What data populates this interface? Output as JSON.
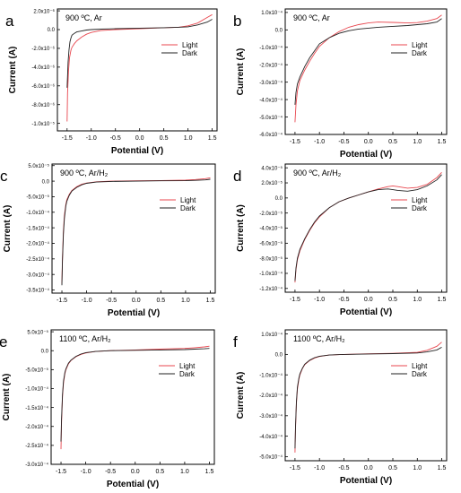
{
  "colors": {
    "light": "#e8474f",
    "dark": "#222222",
    "axis": "#000000"
  },
  "chart_data": [
    {
      "panel": "a",
      "type": "line",
      "annotation": "900 ºC, Ar",
      "xlabel": "Potential (V)",
      "ylabel": "Current (A)",
      "xlim": [
        -1.7,
        1.6
      ],
      "ylim": [
        -1.08e-05,
        2.2e-06
      ],
      "xticks": [
        -1.5,
        -1.0,
        -0.5,
        0.0,
        0.5,
        1.0,
        1.5
      ],
      "xtick_labels": [
        "-1.5",
        "-1.0",
        "-0.5",
        "0.0",
        "0.5",
        "1.0",
        "1.5"
      ],
      "yticks": [
        2e-06,
        0,
        -2e-06,
        -4e-06,
        -6e-06,
        -8e-06,
        -1e-05
      ],
      "ytick_labels": [
        "2.0x10⁻⁶",
        "0.0",
        "-2.0x10⁻⁶",
        "-4.0x10⁻⁶",
        "-6.0x10⁻⁶",
        "-8.0x10⁻⁶",
        "-1.0x10⁻⁵"
      ],
      "legend": "right",
      "series": [
        {
          "name": "Light",
          "color": "light",
          "x": [
            -1.5,
            -1.49,
            -1.47,
            -1.45,
            -1.42,
            -1.4,
            -1.35,
            -1.3,
            -1.2,
            -1.1,
            -1.0,
            -0.8,
            -0.5,
            0.0,
            0.5,
            0.8,
            1.0,
            1.2,
            1.4,
            1.5
          ],
          "y": [
            -9.8e-06,
            -6.8e-06,
            -4.4e-06,
            -3e-06,
            -2.2e-06,
            -1.9e-06,
            -1.5e-06,
            -1.2e-06,
            -8e-07,
            -5e-07,
            -3e-07,
            -1e-07,
            0,
            1e-07,
            2e-07,
            2.5e-07,
            4e-07,
            7e-07,
            1.3e-06,
            1.6e-06
          ]
        },
        {
          "name": "Dark",
          "color": "dark",
          "x": [
            -1.5,
            -1.49,
            -1.48,
            -1.46,
            -1.44,
            -1.42,
            -1.4,
            -1.35,
            -1.3,
            -1.2,
            -1.1,
            -1.0,
            -0.8,
            -0.5,
            0.0,
            0.5,
            0.8,
            1.0,
            1.2,
            1.4,
            1.5
          ],
          "y": [
            -6.2e-06,
            -5e-06,
            -3.5e-06,
            -2.2e-06,
            -1.3e-06,
            -9e-07,
            -6e-07,
            -4e-07,
            -2.5e-07,
            -1.5e-07,
            -5e-08,
            0,
            5e-08,
            1e-07,
            1.5e-07,
            2e-07,
            2.5e-07,
            3e-07,
            5e-07,
            8e-07,
            1.1e-06
          ]
        }
      ]
    },
    {
      "panel": "b",
      "type": "line",
      "annotation": "900 ºC, Ar",
      "xlabel": "Potential (V)",
      "ylabel": "Current (A)",
      "xlim": [
        -1.7,
        1.6
      ],
      "ylim": [
        -0.0006,
        0.00012
      ],
      "xticks": [
        -1.5,
        -1.0,
        -0.5,
        0.0,
        0.5,
        1.0,
        1.5
      ],
      "xtick_labels": [
        "-1.5",
        "-1.0",
        "-0.5",
        "0.0",
        "0.5",
        "1.0",
        "1.5"
      ],
      "yticks": [
        0.0001,
        0,
        -0.0001,
        -0.0002,
        -0.0003,
        -0.0004,
        -0.0005,
        -0.0006
      ],
      "ytick_labels": [
        "1.0x10⁻⁴",
        "0.0",
        "-1.0x10⁻⁴",
        "-2.0x10⁻⁴",
        "-3.0x10⁻⁴",
        "-4.0x10⁻⁴",
        "-5.0x10⁻⁴",
        "-6.0x10⁻⁴"
      ],
      "legend": "right",
      "series": [
        {
          "name": "Light",
          "color": "light",
          "x": [
            -1.5,
            -1.48,
            -1.45,
            -1.4,
            -1.3,
            -1.2,
            -1.1,
            -1.0,
            -0.8,
            -0.6,
            -0.4,
            -0.2,
            0.0,
            0.2,
            0.5,
            0.8,
            1.0,
            1.2,
            1.4,
            1.5
          ],
          "y": [
            -0.00053,
            -0.00043,
            -0.00035,
            -0.00029,
            -0.00023,
            -0.00018,
            -0.000135,
            -9.5e-05,
            -4.5e-05,
            -1e-05,
            1.5e-05,
            3e-05,
            4e-05,
            4.5e-05,
            4.3e-05,
            4e-05,
            4.2e-05,
            5e-05,
            6.5e-05,
            8.5e-05
          ]
        },
        {
          "name": "Dark",
          "color": "dark",
          "x": [
            -1.5,
            -1.48,
            -1.45,
            -1.4,
            -1.3,
            -1.2,
            -1.1,
            -1.0,
            -0.8,
            -0.6,
            -0.4,
            -0.2,
            0.0,
            0.2,
            0.5,
            0.8,
            1.0,
            1.2,
            1.4,
            1.5
          ],
          "y": [
            -0.00043,
            -0.00036,
            -0.00031,
            -0.00027,
            -0.00021,
            -0.00016,
            -0.00012,
            -8e-05,
            -4.5e-05,
            -2e-05,
            -5e-06,
            5e-06,
            1e-05,
            1.5e-05,
            2e-05,
            2.5e-05,
            3e-05,
            3.5e-05,
            4.5e-05,
            6.5e-05
          ]
        }
      ]
    },
    {
      "panel": "c",
      "type": "line",
      "annotation": "900 ºC, Ar/H₂",
      "xlabel": "Potential (V)",
      "ylabel": "Current (A)",
      "xlim": [
        -1.7,
        1.6
      ],
      "ylim": [
        -0.00036,
        5.5e-05
      ],
      "xticks": [
        -1.5,
        -1.0,
        -0.5,
        0.0,
        0.5,
        1.0,
        1.5
      ],
      "xtick_labels": [
        "-1.5",
        "-1.0",
        "-0.5",
        "0.0",
        "0.5",
        "1.0",
        "1.5"
      ],
      "yticks": [
        5e-05,
        0,
        -5e-05,
        -0.0001,
        -0.00015,
        -0.0002,
        -0.00025,
        -0.0003,
        -0.00035
      ],
      "ytick_labels": [
        "5.0x10⁻⁵",
        "0.0",
        "-5.0x10⁻⁵",
        "-1.0x10⁻⁴",
        "-1.5x10⁻⁴",
        "-2.0x10⁻⁴",
        "-2.5x10⁻⁴",
        "-3.0x10⁻⁴",
        "-3.5x10⁻⁴"
      ],
      "legend": "right",
      "series": [
        {
          "name": "Light",
          "color": "light",
          "x": [
            -1.5,
            -1.49,
            -1.47,
            -1.45,
            -1.42,
            -1.4,
            -1.35,
            -1.3,
            -1.2,
            -1.1,
            -1.0,
            -0.8,
            -0.5,
            0.0,
            0.5,
            1.0,
            1.2,
            1.4,
            1.5
          ],
          "y": [
            -0.00033,
            -0.00025,
            -0.00016,
            -0.00011,
            -7.5e-05,
            -6e-05,
            -4.2e-05,
            -3e-05,
            -1.8e-05,
            -1e-05,
            -6e-06,
            -2e-06,
            0,
            1e-06,
            2e-06,
            3e-06,
            5e-06,
            8e-06,
            1.1e-05
          ]
        },
        {
          "name": "Dark",
          "color": "dark",
          "x": [
            -1.5,
            -1.49,
            -1.47,
            -1.45,
            -1.42,
            -1.4,
            -1.35,
            -1.3,
            -1.2,
            -1.1,
            -1.0,
            -0.8,
            -0.5,
            0.0,
            0.5,
            1.0,
            1.2,
            1.4,
            1.5
          ],
          "y": [
            -0.000335,
            -0.00026,
            -0.00017,
            -0.00012,
            -8e-05,
            -6.5e-05,
            -4.5e-05,
            -3.2e-05,
            -2e-05,
            -1.2e-05,
            -7e-06,
            -3e-06,
            -1e-06,
            0,
            1e-06,
            1.5e-06,
            2.5e-06,
            4e-06,
            6e-06
          ]
        }
      ]
    },
    {
      "panel": "d",
      "type": "line",
      "annotation": "900 ºC, Ar/H₂",
      "xlabel": "Potential (V)",
      "ylabel": "Current (A)",
      "xlim": [
        -1.7,
        1.6
      ],
      "ylim": [
        -0.000125,
        4.5e-05
      ],
      "xticks": [
        -1.5,
        -1.0,
        -0.5,
        0.0,
        0.5,
        1.0,
        1.5
      ],
      "xtick_labels": [
        "-1.5",
        "-1.0",
        "-0.5",
        "0.0",
        "0.5",
        "1.0",
        "1.5"
      ],
      "yticks": [
        4e-05,
        2e-05,
        0,
        -2e-05,
        -4e-05,
        -6e-05,
        -8e-05,
        -0.0001,
        -0.00012
      ],
      "ytick_labels": [
        "4.0x10⁻⁵",
        "2.0x10⁻⁵",
        "0.0",
        "-2.0x10⁻⁵",
        "-4.0x10⁻⁵",
        "-6.0x10⁻⁵",
        "-8.0x10⁻⁵",
        "-1.0x10⁻⁴",
        "-1.2x10⁻⁴"
      ],
      "legend": "right",
      "series": [
        {
          "name": "Light",
          "color": "light",
          "x": [
            -1.5,
            -1.48,
            -1.45,
            -1.4,
            -1.3,
            -1.2,
            -1.1,
            -1.0,
            -0.8,
            -0.6,
            -0.4,
            -0.2,
            0.0,
            0.2,
            0.4,
            0.5,
            0.6,
            0.8,
            1.0,
            1.2,
            1.4,
            1.5
          ],
          "y": [
            -0.000112,
            -9.5e-05,
            -8.2e-05,
            -7e-05,
            -5.5e-05,
            -4.3e-05,
            -3.3e-05,
            -2.5e-05,
            -1.3e-05,
            -5e-06,
            0,
            4e-06,
            8e-06,
            1.2e-05,
            1.5e-05,
            1.6e-05,
            1.5e-05,
            1.3e-05,
            1.4e-05,
            1.8e-05,
            2.7e-05,
            3.4e-05
          ]
        },
        {
          "name": "Dark",
          "color": "dark",
          "x": [
            -1.5,
            -1.48,
            -1.45,
            -1.4,
            -1.3,
            -1.2,
            -1.1,
            -1.0,
            -0.8,
            -0.6,
            -0.4,
            -0.2,
            0.0,
            0.2,
            0.4,
            0.5,
            0.6,
            0.8,
            1.0,
            1.2,
            1.4,
            1.5
          ],
          "y": [
            -0.00011,
            -9.3e-05,
            -8e-05,
            -6.8e-05,
            -5.4e-05,
            -4.2e-05,
            -3.2e-05,
            -2.4e-05,
            -1.3e-05,
            -5e-06,
            0,
            4e-06,
            8e-06,
            1.1e-05,
            1.2e-05,
            1.1e-05,
            1e-05,
            9e-06,
            1.1e-05,
            1.6e-05,
            2.4e-05,
            3.1e-05
          ]
        }
      ]
    },
    {
      "panel": "e",
      "type": "line",
      "annotation": "1100 ºC, Ar/H₂",
      "xlabel": "Potential (V)",
      "ylabel": "Current (A)",
      "xlim": [
        -1.7,
        1.6
      ],
      "ylim": [
        -0.0003,
        5.5e-05
      ],
      "xticks": [
        -1.5,
        -1.0,
        -0.5,
        0.0,
        0.5,
        1.0,
        1.5
      ],
      "xtick_labels": [
        "-1.5",
        "-1.0",
        "-0.5",
        "0.0",
        "0.5",
        "1.0",
        "1.5"
      ],
      "yticks": [
        5e-05,
        0,
        -5e-05,
        -0.0001,
        -0.00015,
        -0.0002,
        -0.00025,
        -0.0003
      ],
      "ytick_labels": [
        "5.0x10⁻⁵",
        "0.0",
        "-5.0x10⁻⁵",
        "-1.0x10⁻⁴",
        "-1.5x10⁻⁴",
        "-2.0x10⁻⁴",
        "-2.5x10⁻⁴",
        "-3.0x10⁻⁴"
      ],
      "legend": "right",
      "series": [
        {
          "name": "Light",
          "color": "light",
          "x": [
            -1.5,
            -1.49,
            -1.47,
            -1.45,
            -1.42,
            -1.4,
            -1.35,
            -1.3,
            -1.2,
            -1.1,
            -1.0,
            -0.8,
            -0.5,
            0.0,
            0.5,
            1.0,
            1.2,
            1.4,
            1.5
          ],
          "y": [
            -0.00026,
            -0.00019,
            -0.00012,
            -8.5e-05,
            -6e-05,
            -5e-05,
            -3.5e-05,
            -2.6e-05,
            -1.6e-05,
            -1e-05,
            -6e-06,
            -2e-06,
            0,
            2e-06,
            4e-06,
            6e-06,
            8e-06,
            1e-05,
            1.2e-05
          ]
        },
        {
          "name": "Dark",
          "color": "dark",
          "x": [
            -1.5,
            -1.49,
            -1.47,
            -1.45,
            -1.42,
            -1.4,
            -1.35,
            -1.3,
            -1.2,
            -1.1,
            -1.0,
            -0.8,
            -0.5,
            0.0,
            0.5,
            1.0,
            1.2,
            1.4,
            1.5
          ],
          "y": [
            -0.00024,
            -0.00018,
            -0.000115,
            -8e-05,
            -5.7e-05,
            -4.8e-05,
            -3.3e-05,
            -2.5e-05,
            -1.5e-05,
            -9e-06,
            -5e-06,
            -2e-06,
            0,
            1e-06,
            2e-06,
            3e-06,
            4e-06,
            5e-06,
            6e-06
          ]
        }
      ]
    },
    {
      "panel": "f",
      "type": "line",
      "annotation": "1100 ºC, Ar/H₂",
      "xlabel": "Potential (V)",
      "ylabel": "Current (A)",
      "xlim": [
        -1.7,
        1.6
      ],
      "ylim": [
        -0.00052,
        0.00012
      ],
      "xticks": [
        -1.5,
        -1.0,
        -0.5,
        0.0,
        0.5,
        1.0,
        1.5
      ],
      "xtick_labels": [
        "-1.5",
        "-1.0",
        "-0.5",
        "0.0",
        "0.5",
        "1.0",
        "1.5"
      ],
      "yticks": [
        0.0001,
        0,
        -0.0001,
        -0.0002,
        -0.0003,
        -0.0004,
        -0.0005
      ],
      "ytick_labels": [
        "1.0x10⁻⁴",
        "0.0",
        "-1.0x10⁻⁴",
        "-2.0x10⁻⁴",
        "-3.0x10⁻⁴",
        "-4.0x10⁻⁴",
        "-5.0x10⁻⁴"
      ],
      "legend": "right",
      "series": [
        {
          "name": "Light",
          "color": "light",
          "x": [
            -1.5,
            -1.49,
            -1.47,
            -1.45,
            -1.42,
            -1.4,
            -1.35,
            -1.3,
            -1.2,
            -1.1,
            -1.0,
            -0.8,
            -0.5,
            0.0,
            0.5,
            1.0,
            1.2,
            1.4,
            1.5
          ],
          "y": [
            -0.00048,
            -0.00036,
            -0.00024,
            -0.00017,
            -0.00012,
            -0.0001,
            -7e-05,
            -5e-05,
            -3e-05,
            -1.8e-05,
            -1e-05,
            -3e-06,
            0,
            3e-06,
            5e-06,
            1e-05,
            2e-05,
            4e-05,
            6e-05
          ]
        },
        {
          "name": "Dark",
          "color": "dark",
          "x": [
            -1.5,
            -1.49,
            -1.47,
            -1.45,
            -1.42,
            -1.4,
            -1.35,
            -1.3,
            -1.2,
            -1.1,
            -1.0,
            -0.8,
            -0.5,
            0.0,
            0.5,
            1.0,
            1.2,
            1.4,
            1.5
          ],
          "y": [
            -0.00046,
            -0.00035,
            -0.00023,
            -0.00016,
            -0.000115,
            -9.5e-05,
            -6.8e-05,
            -4.8e-05,
            -2.8e-05,
            -1.6e-05,
            -9e-06,
            -3e-06,
            0,
            2e-06,
            4e-06,
            7e-06,
            1.2e-05,
            2.2e-05,
            3.5e-05
          ]
        }
      ]
    }
  ]
}
